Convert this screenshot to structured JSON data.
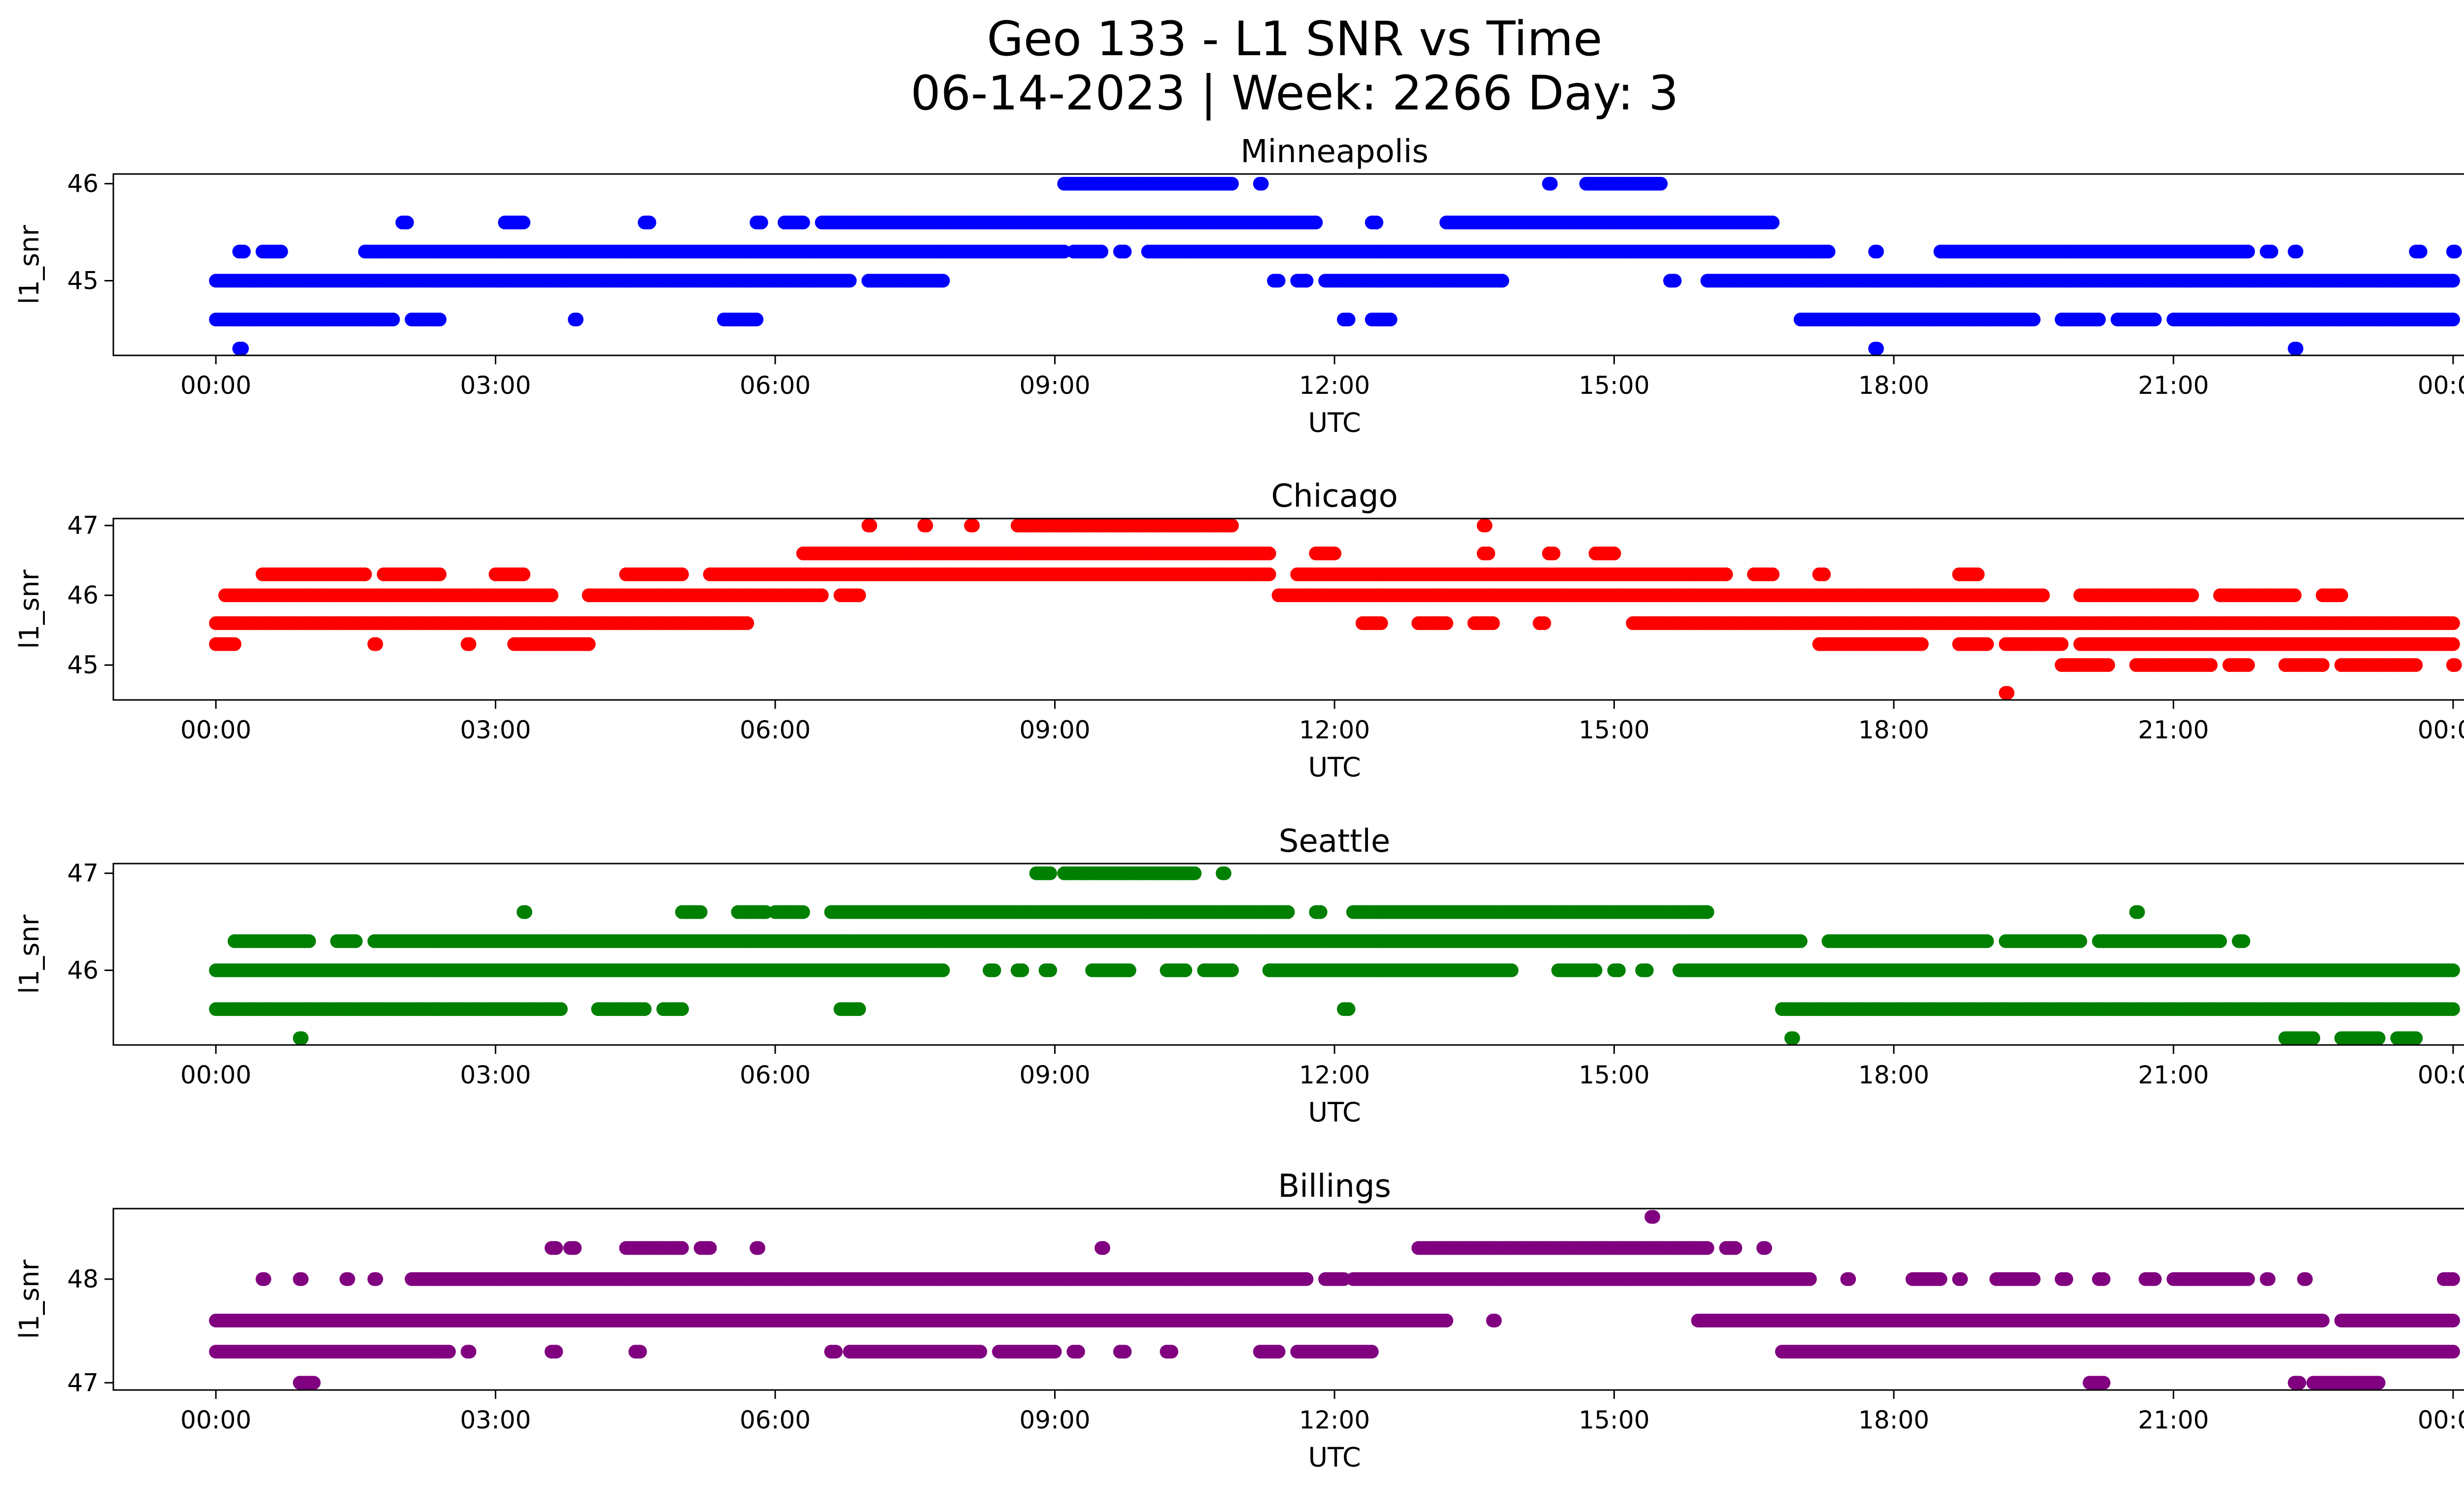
{
  "figure": {
    "title_line1": "Geo 133 - L1 SNR vs Time",
    "title_line2": "06-14-2023 | Week: 2266 Day: 3"
  },
  "chart_data": [
    {
      "type": "scatter",
      "title": "Minneapolis",
      "xlabel": "UTC",
      "ylabel": "l1_snr",
      "color": "#0000ff",
      "x_ticks": [
        "00:00",
        "03:00",
        "06:00",
        "09:00",
        "12:00",
        "15:00",
        "18:00",
        "21:00",
        "00:00"
      ],
      "y_ticks": [
        45,
        46
      ],
      "xlim_hours": [
        -1.1,
        25.1
      ],
      "ylim": [
        44.23,
        46.1
      ],
      "levels": [
        {
          "y": 44.3,
          "segments": [
            [
              0.25,
              0.28
            ],
            [
              17.8,
              17.82
            ],
            [
              22.3,
              22.32
            ]
          ]
        },
        {
          "y": 44.6,
          "segments": [
            [
              0.0,
              1.9
            ],
            [
              2.1,
              2.4
            ],
            [
              3.85,
              3.87
            ],
            [
              5.45,
              5.8
            ],
            [
              12.1,
              12.15
            ],
            [
              12.4,
              12.6
            ],
            [
              17.0,
              19.5
            ],
            [
              19.8,
              20.2
            ],
            [
              20.4,
              20.8
            ],
            [
              21.0,
              24.0
            ]
          ]
        },
        {
          "y": 45.0,
          "segments": [
            [
              0.0,
              6.8
            ],
            [
              7.0,
              7.8
            ],
            [
              11.35,
              11.4
            ],
            [
              11.6,
              11.7
            ],
            [
              11.9,
              13.8
            ],
            [
              15.6,
              15.65
            ],
            [
              16.0,
              24.0
            ]
          ]
        },
        {
          "y": 45.3,
          "segments": [
            [
              0.25,
              0.3
            ],
            [
              0.5,
              0.7
            ],
            [
              1.6,
              9.1
            ],
            [
              9.2,
              9.5
            ],
            [
              9.7,
              9.75
            ],
            [
              10.0,
              17.3
            ],
            [
              17.8,
              17.82
            ],
            [
              18.5,
              21.8
            ],
            [
              22.0,
              22.05
            ],
            [
              22.3,
              22.32
            ],
            [
              23.6,
              23.65
            ],
            [
              24.0,
              24.02
            ]
          ]
        },
        {
          "y": 45.6,
          "segments": [
            [
              2.0,
              2.05
            ],
            [
              3.1,
              3.3
            ],
            [
              4.6,
              4.65
            ],
            [
              5.8,
              5.85
            ],
            [
              6.1,
              6.3
            ],
            [
              6.5,
              11.8
            ],
            [
              12.4,
              12.45
            ],
            [
              13.2,
              16.7
            ]
          ]
        },
        {
          "y": 46.0,
          "segments": [
            [
              9.1,
              10.9
            ],
            [
              11.2,
              11.22
            ],
            [
              14.3,
              14.32
            ],
            [
              14.7,
              15.5
            ]
          ]
        }
      ]
    },
    {
      "type": "scatter",
      "title": "Chicago",
      "xlabel": "UTC",
      "ylabel": "l1_snr",
      "color": "#ff0000",
      "x_ticks": [
        "00:00",
        "03:00",
        "06:00",
        "09:00",
        "12:00",
        "15:00",
        "18:00",
        "21:00",
        "00:00"
      ],
      "y_ticks": [
        45,
        46,
        47
      ],
      "xlim_hours": [
        -1.1,
        25.1
      ],
      "ylim": [
        44.5,
        47.1
      ],
      "levels": [
        {
          "y": 44.6,
          "segments": [
            [
              19.2,
              19.22
            ]
          ]
        },
        {
          "y": 45.0,
          "segments": [
            [
              19.8,
              20.3
            ],
            [
              20.6,
              21.4
            ],
            [
              21.6,
              21.8
            ],
            [
              22.2,
              22.6
            ],
            [
              22.8,
              23.6
            ],
            [
              24.0,
              24.02
            ]
          ]
        },
        {
          "y": 45.3,
          "segments": [
            [
              0.0,
              0.2
            ],
            [
              1.7,
              1.72
            ],
            [
              2.7,
              2.72
            ],
            [
              3.2,
              4.0
            ],
            [
              17.2,
              18.3
            ],
            [
              18.7,
              19.0
            ],
            [
              19.2,
              19.8
            ],
            [
              20.0,
              24.0
            ]
          ]
        },
        {
          "y": 45.6,
          "segments": [
            [
              0.0,
              5.7
            ],
            [
              12.3,
              12.5
            ],
            [
              12.9,
              13.2
            ],
            [
              13.5,
              13.7
            ],
            [
              14.2,
              14.25
            ],
            [
              15.2,
              24.0
            ]
          ]
        },
        {
          "y": 46.0,
          "segments": [
            [
              0.1,
              3.6
            ],
            [
              4.0,
              6.5
            ],
            [
              6.7,
              6.9
            ],
            [
              11.4,
              19.6
            ],
            [
              20.0,
              21.2
            ],
            [
              21.5,
              22.3
            ],
            [
              22.6,
              22.8
            ]
          ]
        },
        {
          "y": 46.3,
          "segments": [
            [
              0.5,
              1.6
            ],
            [
              1.8,
              2.4
            ],
            [
              3.0,
              3.3
            ],
            [
              4.4,
              5.0
            ],
            [
              5.3,
              11.3
            ],
            [
              11.6,
              16.2
            ],
            [
              16.5,
              16.7
            ],
            [
              17.2,
              17.25
            ],
            [
              18.7,
              18.9
            ]
          ]
        },
        {
          "y": 46.6,
          "segments": [
            [
              6.3,
              11.3
            ],
            [
              11.8,
              12.0
            ],
            [
              13.6,
              13.65
            ],
            [
              14.3,
              14.35
            ],
            [
              14.8,
              15.0
            ]
          ]
        },
        {
          "y": 47.0,
          "segments": [
            [
              7.0,
              7.02
            ],
            [
              7.6,
              7.62
            ],
            [
              8.1,
              8.12
            ],
            [
              8.6,
              10.9
            ],
            [
              13.6,
              13.62
            ]
          ]
        }
      ]
    },
    {
      "type": "scatter",
      "title": "Seattle",
      "xlabel": "UTC",
      "ylabel": "l1_snr",
      "color": "#008000",
      "x_ticks": [
        "00:00",
        "03:00",
        "06:00",
        "09:00",
        "12:00",
        "15:00",
        "18:00",
        "21:00",
        "00:00"
      ],
      "y_ticks": [
        46,
        47
      ],
      "xlim_hours": [
        -1.1,
        25.1
      ],
      "ylim": [
        45.23,
        47.1
      ],
      "levels": [
        {
          "y": 45.3,
          "segments": [
            [
              0.9,
              0.92
            ],
            [
              16.9,
              16.92
            ],
            [
              22.2,
              22.5
            ],
            [
              22.8,
              23.2
            ],
            [
              23.4,
              23.6
            ]
          ]
        },
        {
          "y": 45.6,
          "segments": [
            [
              0.0,
              3.7
            ],
            [
              4.1,
              4.6
            ],
            [
              4.8,
              5.0
            ],
            [
              6.7,
              6.9
            ],
            [
              12.1,
              12.15
            ],
            [
              16.8,
              24.0
            ]
          ]
        },
        {
          "y": 46.0,
          "segments": [
            [
              0.0,
              7.8
            ],
            [
              8.3,
              8.35
            ],
            [
              8.6,
              8.65
            ],
            [
              8.9,
              8.95
            ],
            [
              9.4,
              9.8
            ],
            [
              10.2,
              10.4
            ],
            [
              10.6,
              10.9
            ],
            [
              11.3,
              13.9
            ],
            [
              14.4,
              14.8
            ],
            [
              15.0,
              15.05
            ],
            [
              15.3,
              15.35
            ],
            [
              15.7,
              24.0
            ]
          ]
        },
        {
          "y": 46.3,
          "segments": [
            [
              0.2,
              1.0
            ],
            [
              1.3,
              1.5
            ],
            [
              1.7,
              17.0
            ],
            [
              17.3,
              19.0
            ],
            [
              19.2,
              20.0
            ],
            [
              20.2,
              21.5
            ],
            [
              21.7,
              21.75
            ]
          ]
        },
        {
          "y": 46.6,
          "segments": [
            [
              3.3,
              3.32
            ],
            [
              5.0,
              5.2
            ],
            [
              5.6,
              5.9
            ],
            [
              6.0,
              6.3
            ],
            [
              6.6,
              11.5
            ],
            [
              11.8,
              11.85
            ],
            [
              12.2,
              16.0
            ],
            [
              20.6,
              20.62
            ]
          ]
        },
        {
          "y": 47.0,
          "segments": [
            [
              8.8,
              8.95
            ],
            [
              9.1,
              10.5
            ],
            [
              10.8,
              10.82
            ]
          ]
        }
      ]
    },
    {
      "type": "scatter",
      "title": "Billings",
      "xlabel": "UTC",
      "ylabel": "l1_snr",
      "color": "#800080",
      "x_ticks": [
        "00:00",
        "03:00",
        "06:00",
        "09:00",
        "12:00",
        "15:00",
        "18:00",
        "21:00",
        "00:00"
      ],
      "y_ticks": [
        47,
        48
      ],
      "xlim_hours": [
        -1.1,
        25.1
      ],
      "ylim": [
        46.93,
        48.68
      ],
      "levels": [
        {
          "y": 47.0,
          "segments": [
            [
              0.9,
              1.05
            ],
            [
              20.1,
              20.25
            ],
            [
              22.3,
              22.35
            ],
            [
              22.5,
              23.2
            ]
          ]
        },
        {
          "y": 47.3,
          "segments": [
            [
              0.0,
              2.5
            ],
            [
              2.7,
              2.72
            ],
            [
              3.6,
              3.65
            ],
            [
              4.5,
              4.55
            ],
            [
              6.6,
              6.65
            ],
            [
              6.8,
              8.2
            ],
            [
              8.4,
              9.0
            ],
            [
              9.2,
              9.25
            ],
            [
              9.7,
              9.75
            ],
            [
              10.2,
              10.25
            ],
            [
              11.2,
              11.4
            ],
            [
              11.6,
              12.4
            ],
            [
              16.8,
              24.0
            ]
          ]
        },
        {
          "y": 47.6,
          "segments": [
            [
              0.0,
              13.2
            ],
            [
              13.7,
              13.72
            ],
            [
              15.9,
              22.6
            ],
            [
              22.8,
              24.0
            ]
          ]
        },
        {
          "y": 48.0,
          "segments": [
            [
              0.5,
              0.52
            ],
            [
              0.9,
              0.92
            ],
            [
              1.4,
              1.42
            ],
            [
              1.7,
              1.72
            ],
            [
              2.1,
              11.7
            ],
            [
              11.9,
              12.1
            ],
            [
              12.2,
              17.1
            ],
            [
              17.5,
              17.52
            ],
            [
              18.2,
              18.5
            ],
            [
              18.7,
              18.72
            ],
            [
              19.1,
              19.5
            ],
            [
              19.8,
              19.85
            ],
            [
              20.2,
              20.25
            ],
            [
              20.7,
              20.8
            ],
            [
              21.0,
              21.8
            ],
            [
              22.0,
              22.02
            ],
            [
              22.4,
              22.42
            ],
            [
              23.9,
              24.0
            ]
          ]
        },
        {
          "y": 48.3,
          "segments": [
            [
              3.6,
              3.65
            ],
            [
              3.8,
              3.85
            ],
            [
              4.4,
              5.0
            ],
            [
              5.2,
              5.3
            ],
            [
              5.8,
              5.82
            ],
            [
              9.5,
              9.52
            ],
            [
              12.9,
              16.0
            ],
            [
              16.2,
              16.3
            ],
            [
              16.6,
              16.62
            ]
          ]
        },
        {
          "y": 48.6,
          "segments": [
            [
              15.4,
              15.42
            ]
          ]
        }
      ]
    }
  ]
}
